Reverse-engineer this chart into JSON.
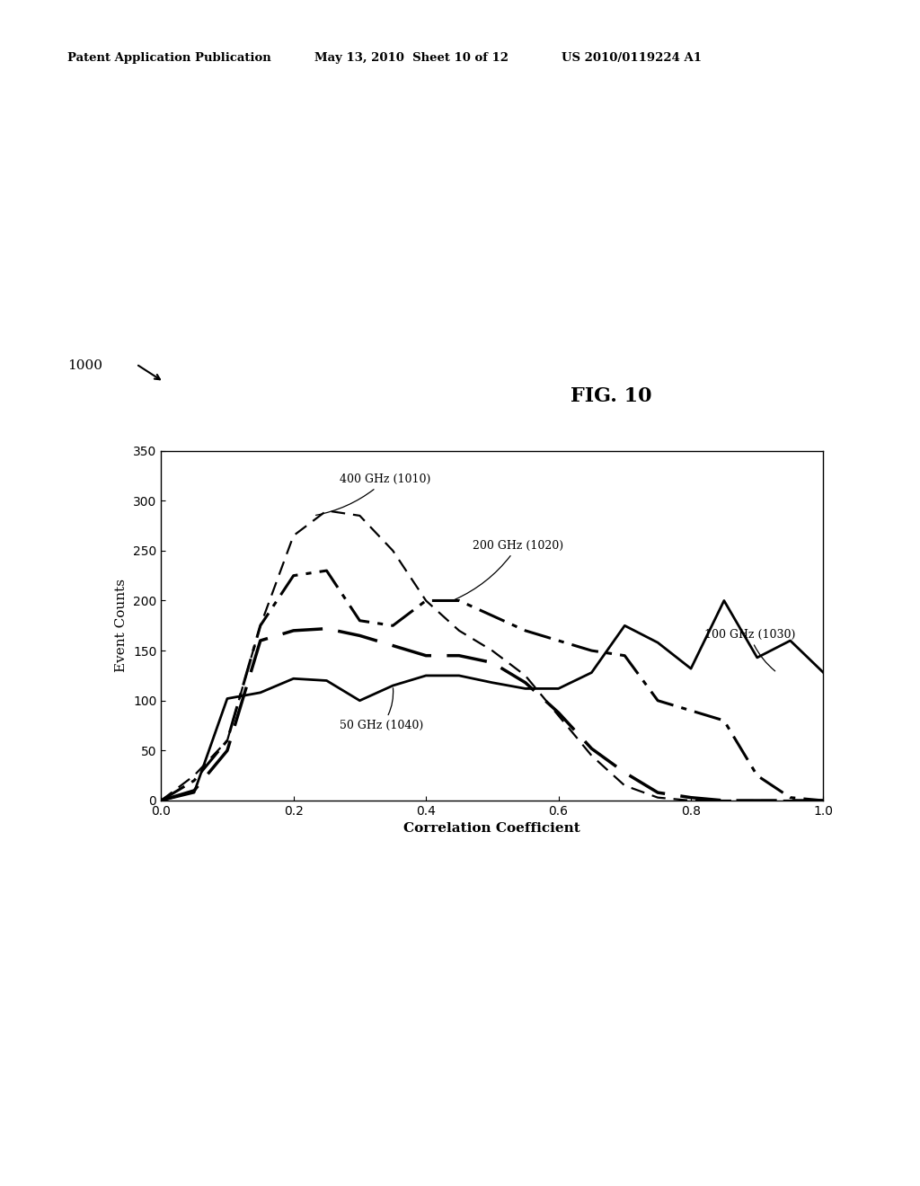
{
  "header_left": "Patent Application Publication",
  "header_mid": "May 13, 2010  Sheet 10 of 12",
  "header_right": "US 2010/0119224 A1",
  "fig_label": "FIG. 10",
  "diagram_label": "1000",
  "xlabel": "Correlation Coefficient",
  "ylabel": "Event Counts",
  "xlim": [
    0,
    1
  ],
  "ylim": [
    0,
    350
  ],
  "yticks": [
    0,
    50,
    100,
    150,
    200,
    250,
    300,
    350
  ],
  "xticks": [
    0,
    0.2,
    0.4,
    0.6,
    0.8,
    1
  ],
  "series": [
    {
      "label": "400 GHz (1010)",
      "linewidth": 1.6,
      "color": "#000000",
      "x": [
        0,
        0.05,
        0.1,
        0.15,
        0.2,
        0.25,
        0.3,
        0.35,
        0.4,
        0.45,
        0.5,
        0.55,
        0.6,
        0.65,
        0.7,
        0.75,
        0.8,
        0.85,
        0.9,
        0.95,
        1.0
      ],
      "y": [
        0,
        25,
        60,
        175,
        265,
        290,
        285,
        250,
        200,
        170,
        150,
        125,
        85,
        45,
        15,
        3,
        0,
        0,
        0,
        0,
        0
      ],
      "dashes": [
        7,
        4
      ]
    },
    {
      "label": "200 GHz (1020)",
      "linewidth": 2.2,
      "color": "#000000",
      "x": [
        0,
        0.05,
        0.1,
        0.15,
        0.2,
        0.25,
        0.3,
        0.35,
        0.4,
        0.45,
        0.5,
        0.55,
        0.6,
        0.65,
        0.7,
        0.75,
        0.8,
        0.85,
        0.9,
        0.95,
        1.0
      ],
      "y": [
        0,
        20,
        60,
        175,
        225,
        230,
        180,
        175,
        200,
        200,
        185,
        170,
        160,
        150,
        145,
        100,
        90,
        80,
        25,
        3,
        0
      ],
      "dashes": [
        10,
        3,
        2,
        3
      ]
    },
    {
      "label": "100 GHz (1030)",
      "linewidth": 2.0,
      "color": "#000000",
      "x": [
        0,
        0.05,
        0.1,
        0.15,
        0.2,
        0.25,
        0.3,
        0.35,
        0.4,
        0.45,
        0.5,
        0.55,
        0.6,
        0.65,
        0.7,
        0.75,
        0.8,
        0.85,
        0.9,
        0.95,
        1.0
      ],
      "y": [
        0,
        8,
        102,
        108,
        122,
        120,
        100,
        115,
        125,
        125,
        118,
        112,
        112,
        128,
        175,
        158,
        132,
        200,
        143,
        160,
        128
      ],
      "dashes": []
    },
    {
      "label": "50 GHz (1040)",
      "linewidth": 2.5,
      "color": "#000000",
      "x": [
        0,
        0.05,
        0.1,
        0.15,
        0.2,
        0.25,
        0.3,
        0.35,
        0.4,
        0.45,
        0.5,
        0.55,
        0.6,
        0.65,
        0.7,
        0.75,
        0.8,
        0.85,
        0.9,
        0.95,
        1.0
      ],
      "y": [
        0,
        10,
        50,
        160,
        170,
        172,
        165,
        155,
        145,
        145,
        138,
        118,
        88,
        52,
        28,
        8,
        3,
        0,
        0,
        0,
        0
      ],
      "dashes": [
        13,
        5
      ]
    }
  ],
  "background_color": "#ffffff",
  "header_fontsize": 9.5,
  "fig_fontsize": 16,
  "label_fontsize": 11,
  "tick_fontsize": 10,
  "annotation_fontsize": 9
}
